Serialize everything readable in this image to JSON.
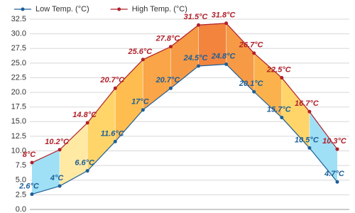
{
  "chart_data": {
    "type": "line",
    "categories": [
      null,
      null,
      null,
      null,
      null,
      null,
      null,
      null,
      null,
      null,
      null,
      null
    ],
    "series": [
      {
        "name": "Low Temp. (°C)",
        "color": "#1d5f98",
        "values": [
          2.6,
          4,
          6.6,
          11.6,
          17,
          20.7,
          24.5,
          24.8,
          20.1,
          15.7,
          10.5,
          4.7
        ],
        "value_labels": [
          "2.6°C",
          "4°C",
          "6.6°C",
          "11.6°C",
          "17°C",
          "20.7°C",
          "24.5°C",
          "24.8°C",
          "20.1°C",
          "15.7°C",
          "10.5°C",
          "4.7°C"
        ]
      },
      {
        "name": "High Temp. (°C)",
        "color": "#b0202a",
        "values": [
          8,
          10.2,
          14.8,
          20.7,
          25.6,
          27.8,
          31.5,
          31.8,
          26.7,
          22.5,
          16.7,
          10.3
        ],
        "value_labels": [
          "8°C",
          "10.2°C",
          "14.8°C",
          "20.7°C",
          "25.6°C",
          "27.8°C",
          "31.5°C",
          "31.8°C",
          "26.7°C",
          "22.5°C",
          "16.7°C",
          "10.3°C"
        ]
      }
    ],
    "band_colors": [
      "#9fe0f6",
      "#ffe9a3",
      "#ffd56a",
      "#ffbd4f",
      "#f9a548",
      "#f69a45",
      "#f2843e",
      "#f69a45",
      "#fbb24c",
      "#ffd56a",
      "#9fe0f6"
    ],
    "ylim": [
      0,
      32.5
    ],
    "yticks": [
      {
        "value": 0,
        "label": "0.0"
      },
      2.5,
      {
        "value": 5,
        "label": "5.0"
      },
      7.5,
      {
        "value": 10,
        "label": "10.0"
      },
      12.5,
      {
        "value": 15,
        "label": "15.0"
      },
      17.5,
      {
        "value": 20,
        "label": "20.0"
      },
      22.5,
      {
        "value": 25,
        "label": "25.0"
      },
      27.5,
      {
        "value": 30,
        "label": "30.0"
      },
      32.5
    ],
    "grid": true,
    "legend": "top"
  }
}
